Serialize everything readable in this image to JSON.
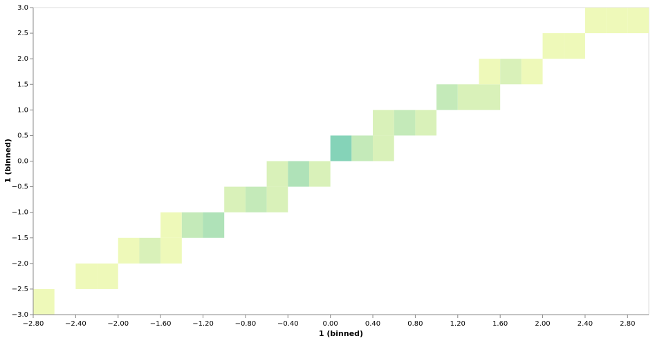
{
  "chart_data": {
    "type": "heatmap",
    "x_label": "1 (binned)",
    "y_label": "1 (binned)",
    "x": [
      -2.8,
      -2.4,
      -2.2,
      -2.0,
      -1.8,
      -1.6,
      -1.6,
      -1.4,
      -1.2,
      -1.0,
      -0.8,
      -0.6,
      -0.6,
      -0.4,
      -0.2,
      0.0,
      0.2,
      0.4,
      0.4,
      0.6,
      0.8,
      1.0,
      1.2,
      1.4,
      1.4,
      1.6,
      1.8,
      2.0,
      2.2,
      2.4,
      2.6,
      2.8
    ],
    "x2": [
      -2.6,
      -2.2,
      -2.0,
      -1.8,
      -1.6,
      -1.4,
      -1.4,
      -1.2,
      -1.0,
      -0.8,
      -0.6,
      -0.4,
      -0.4,
      -0.2,
      0.0,
      0.2,
      0.4,
      0.6,
      0.6,
      0.8,
      1.0,
      1.2,
      1.4,
      1.6,
      1.6,
      1.8,
      2.0,
      2.2,
      2.4,
      2.6,
      2.8,
      3.0
    ],
    "y": [
      -3.0,
      -2.5,
      -2.5,
      -2.0,
      -2.0,
      -2.0,
      -1.5,
      -1.5,
      -1.5,
      -1.0,
      -1.0,
      -1.0,
      -0.5,
      -0.5,
      -0.5,
      0.0,
      0.0,
      0.0,
      0.5,
      0.5,
      0.5,
      1.0,
      1.0,
      1.0,
      1.5,
      1.5,
      1.5,
      2.0,
      2.0,
      2.5,
      2.5,
      2.5
    ],
    "y2": [
      -2.5,
      -2.0,
      -2.0,
      -1.5,
      -1.5,
      -1.5,
      -1.0,
      -1.0,
      -1.0,
      -0.5,
      -0.5,
      -0.5,
      0.0,
      0.0,
      0.0,
      0.5,
      0.5,
      0.5,
      1.0,
      1.0,
      1.0,
      1.5,
      1.5,
      1.5,
      2.0,
      2.0,
      2.0,
      2.5,
      2.5,
      3.0,
      3.0,
      3.0
    ],
    "values": [
      1,
      1,
      1,
      1,
      2,
      1,
      1,
      3,
      4,
      2,
      3,
      2,
      2,
      4,
      2,
      6,
      3,
      2,
      2,
      3,
      2,
      3,
      2,
      2,
      1,
      2,
      1,
      1,
      1,
      1,
      1,
      1
    ],
    "color_low": "#eef9b9",
    "color_high": "#85d3b8",
    "xlim": [
      -2.8,
      3.0
    ],
    "xticks": [
      {
        "value": -2.8,
        "label": "−2.80"
      },
      {
        "value": -2.4,
        "label": "−2.40"
      },
      {
        "value": -2.0,
        "label": "−2.00"
      },
      {
        "value": -1.6,
        "label": "−1.60"
      },
      {
        "value": -1.2,
        "label": "−1.20"
      },
      {
        "value": -0.8,
        "label": "−0.80"
      },
      {
        "value": -0.4,
        "label": "−0.40"
      },
      {
        "value": 0,
        "label": "0.00"
      },
      {
        "value": 0.4,
        "label": "0.40"
      },
      {
        "value": 0.8,
        "label": "0.80"
      },
      {
        "value": 1.2,
        "label": "1.20"
      },
      {
        "value": 1.6,
        "label": "1.60"
      },
      {
        "value": 2.0,
        "label": "2.00"
      },
      {
        "value": 2.4,
        "label": "2.40"
      },
      {
        "value": 2.8,
        "label": "2.80"
      }
    ],
    "ylim": [
      -3.0,
      3.0
    ],
    "yticks": [
      {
        "value": -3.0,
        "label": "−3.0"
      },
      {
        "value": -2.5,
        "label": "−2.5"
      },
      {
        "value": -2.0,
        "label": "−2.0"
      },
      {
        "value": -1.5,
        "label": "−1.5"
      },
      {
        "value": -1.0,
        "label": "−1.0"
      },
      {
        "value": -0.5,
        "label": "−0.5"
      },
      {
        "value": 0,
        "label": "0.0"
      },
      {
        "value": 0.5,
        "label": "0.5"
      },
      {
        "value": 1.0,
        "label": "1.0"
      },
      {
        "value": 1.5,
        "label": "1.5"
      },
      {
        "value": 2.0,
        "label": "2.0"
      },
      {
        "value": 2.5,
        "label": "2.5"
      },
      {
        "value": 3.0,
        "label": "3.0"
      }
    ]
  }
}
